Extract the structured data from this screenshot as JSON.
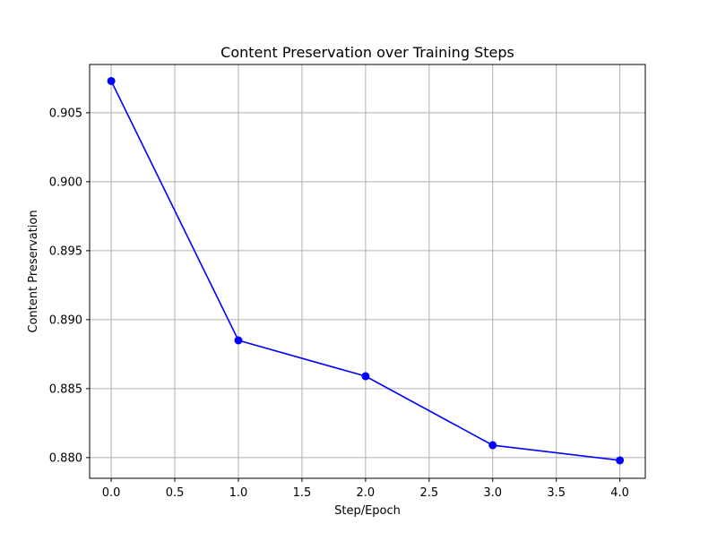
{
  "chart_data": {
    "type": "line",
    "title": "Content Preservation over Training Steps",
    "xlabel": "Step/Epoch",
    "ylabel": "Content Preservation",
    "x": [
      0,
      1,
      2,
      3,
      4
    ],
    "series": [
      {
        "values": [
          0.9073,
          0.8885,
          0.8859,
          0.8809,
          0.8798
        ],
        "color": "#0000ff",
        "marker": "circle"
      }
    ],
    "xlim": [
      -0.17,
      4.2
    ],
    "ylim": [
      0.8785,
      0.9085
    ],
    "xticks": [
      "0.0",
      "0.5",
      "1.0",
      "1.5",
      "2.0",
      "2.5",
      "3.0",
      "3.5",
      "4.0"
    ],
    "yticks": [
      "0.880",
      "0.885",
      "0.890",
      "0.895",
      "0.900",
      "0.905"
    ],
    "grid": true,
    "grid_color": "#b0b0b0",
    "legend": null
  }
}
